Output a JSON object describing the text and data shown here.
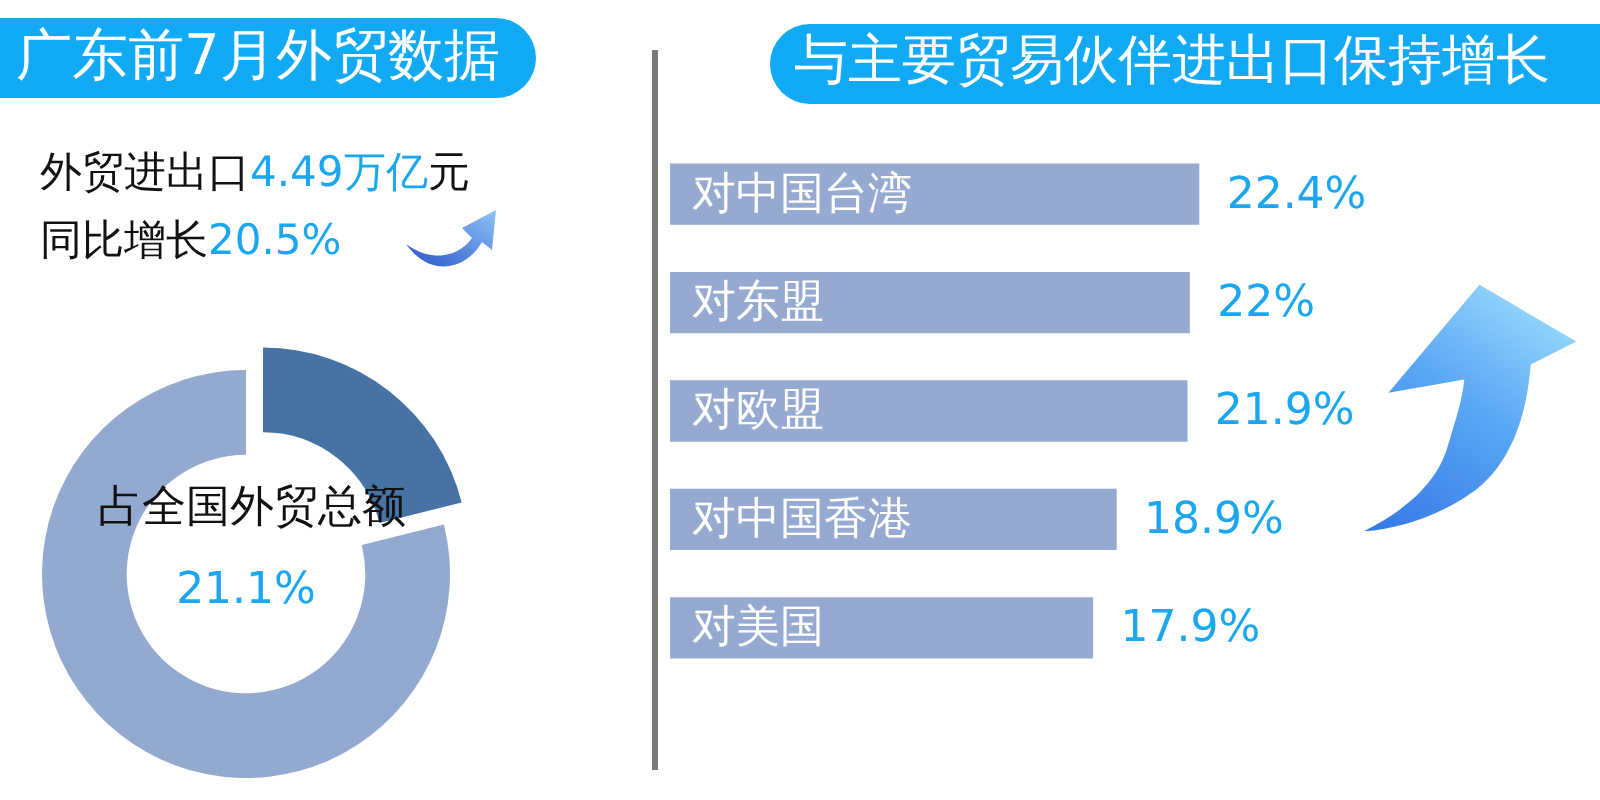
{
  "chart_data": [
    {
      "type": "donut",
      "title": "广东前7月外贸数据",
      "annotations": [
        "外贸进出口4.49万亿元",
        "同比增长20.5%"
      ],
      "categories": [
        "占全国外贸总额",
        null
      ],
      "values": [
        21.1,
        78.9
      ],
      "value_labels": [
        "21.1%",
        null
      ],
      "colors": [
        "#4672a4",
        "#94a9cf"
      ]
    },
    {
      "type": "bar",
      "orientation": "horizontal",
      "title": "与主要贸易伙伴进出口保持增长",
      "categories": [
        "对中国台湾",
        "对东盟",
        "对欧盟",
        "对中国香港",
        "对美国"
      ],
      "values": [
        22.4,
        22,
        21.9,
        18.9,
        17.9
      ],
      "value_labels": [
        "22.4%",
        "22%",
        "21.9%",
        "18.9%",
        "17.9%"
      ],
      "color": "#96a9d1",
      "tick_labels": "y"
    }
  ]
}
